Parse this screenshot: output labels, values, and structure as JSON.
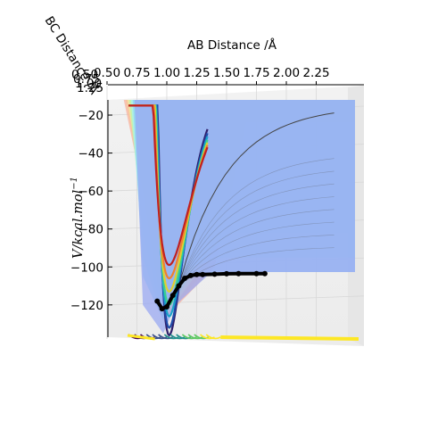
{
  "chart_data": {
    "type": "surface3d",
    "xlabel": "AB Distance /Å",
    "ylabel": "BC Distance /Å",
    "zlabel_main": "V/kcal.mol",
    "zlabel_sup": "−1",
    "x_ticks": [
      "0.50",
      "0.75",
      "1.00",
      "1.25",
      "1.50",
      "1.75",
      "2.00",
      "2.25"
    ],
    "x_ticks_values": [
      0.5,
      0.75,
      1.0,
      1.25,
      1.5,
      1.75,
      2.0,
      2.25
    ],
    "y_ticks": [
      "0.50",
      "0.75",
      "1.00",
      "1.25"
    ],
    "z_ticks": [
      "−20",
      "−40",
      "−60",
      "−80",
      "−100",
      "−120"
    ],
    "z_ticks_values": [
      -20,
      -40,
      -60,
      -80,
      -100,
      -120
    ],
    "xlim": [
      0.5,
      2.5
    ],
    "zlim": [
      -137,
      -12
    ],
    "surface_colormap": "jet",
    "contour_colormap": "viridis",
    "grid": true,
    "trajectory": {
      "color": "#000000",
      "ab_distance": [
        0.92,
        0.96,
        1.0,
        1.05,
        1.1,
        1.15,
        1.2,
        1.25,
        1.3,
        1.4,
        1.5,
        1.6,
        1.75,
        1.82
      ],
      "energy": [
        -118,
        -122,
        -121,
        -115,
        -110,
        -106,
        -104.5,
        -104,
        -104,
        -103.8,
        -103.6,
        -103.5,
        -103.5,
        -103.5
      ]
    },
    "well_curves": [
      {
        "color": "#2f1f6b",
        "min_energy": -136
      },
      {
        "color": "#1e4aa8",
        "min_energy": -132
      },
      {
        "color": "#1aa3c9",
        "min_energy": -126
      },
      {
        "color": "#3bd18e",
        "min_energy": -120
      },
      {
        "color": "#e0d030",
        "min_energy": -113
      },
      {
        "color": "#f08030",
        "min_energy": -106
      },
      {
        "color": "#c02020",
        "min_energy": -99
      }
    ]
  }
}
